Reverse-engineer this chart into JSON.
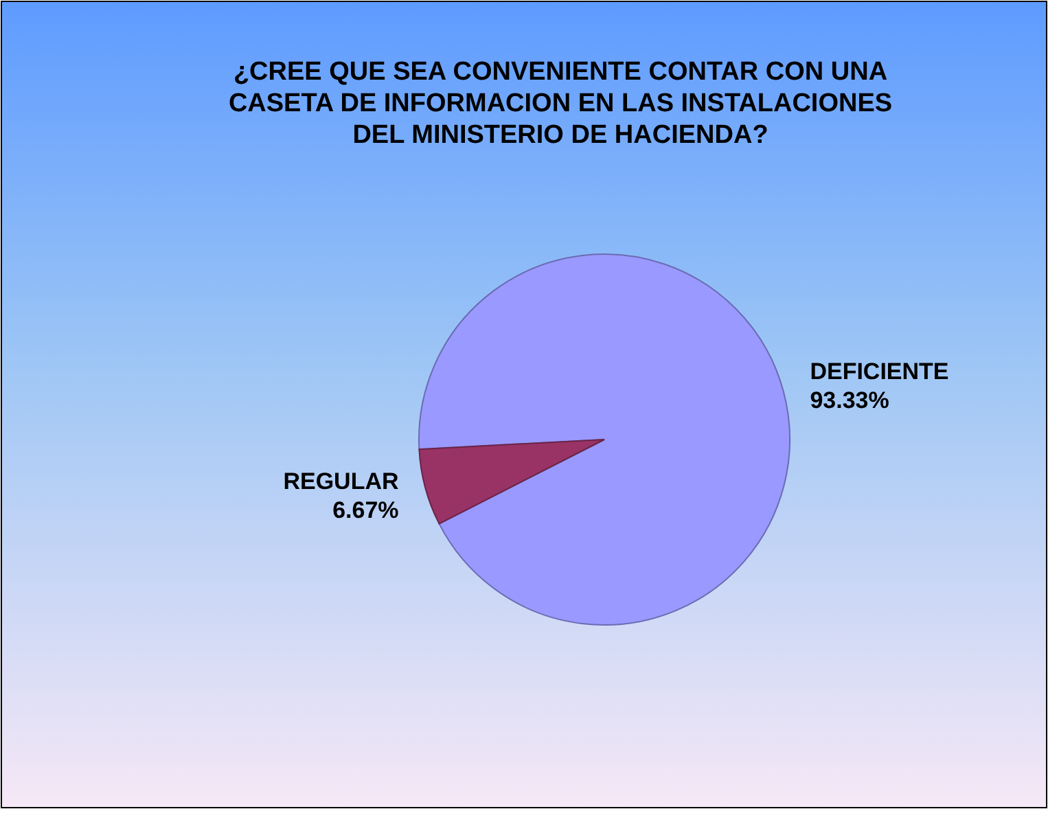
{
  "chart_data": {
    "type": "pie",
    "title": "¿CREE QUE SEA CONVENIENTE CONTAR CON UNA CASETA DE INFORMACION EN LAS INSTALACIONES DEL MINISTERIO DE HACIENDA?",
    "categories": [
      "DEFICIENTE",
      "REGULAR"
    ],
    "values": [
      93.33,
      6.67
    ],
    "colors": [
      "#9999ff",
      "#993366"
    ],
    "value_labels": [
      "93.33%",
      "6.67%"
    ]
  }
}
